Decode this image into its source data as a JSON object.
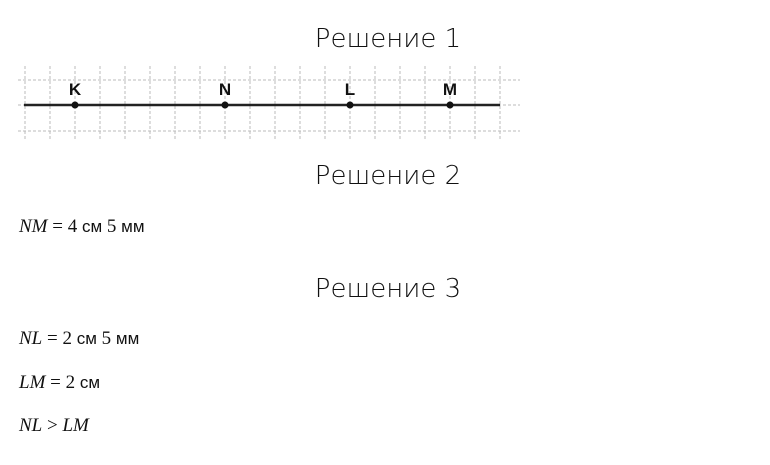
{
  "headings": [
    "Решение 1",
    "Решение 2",
    "Решение 3"
  ],
  "diagram": {
    "points": [
      {
        "label": "K",
        "pos": 2
      },
      {
        "label": "N",
        "pos": 8
      },
      {
        "label": "L",
        "pos": 13
      },
      {
        "label": "M",
        "pos": 17
      }
    ],
    "grid_cells": 20,
    "line_color": "#222222",
    "grid_color": "#bbbbbb"
  },
  "solution2": [
    {
      "lhs": "NM",
      "op": "=",
      "n1": "4",
      "u1": "см",
      "n2": "5",
      "u2": "мм"
    }
  ],
  "solution3": [
    {
      "lhs": "NL",
      "op": "=",
      "n1": "2",
      "u1": "см",
      "n2": "5",
      "u2": "мм"
    },
    {
      "lhs": "LM",
      "op": "=",
      "n1": "2",
      "u1": "см"
    },
    {
      "lhs": "NL",
      "op": ">",
      "rhs": "LM"
    }
  ]
}
